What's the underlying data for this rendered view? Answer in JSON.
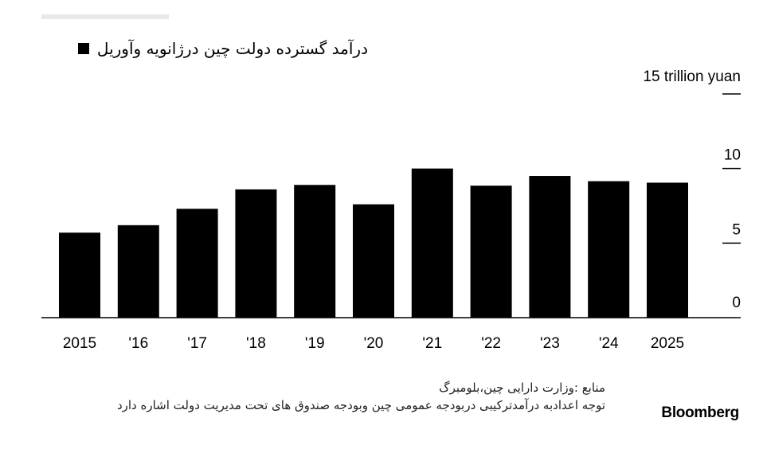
{
  "legend": {
    "label": "درآمد گسترده دولت چین درژانویه وآوریل",
    "swatch_color": "#000000"
  },
  "chart_data": {
    "type": "bar",
    "categories": [
      "2015",
      "'16",
      "'17",
      "'18",
      "'19",
      "'20",
      "'21",
      "'22",
      "'23",
      "'24",
      "2025"
    ],
    "values": [
      5.7,
      6.2,
      7.3,
      8.6,
      8.9,
      7.6,
      10.0,
      8.85,
      9.5,
      9.15,
      9.05
    ],
    "ylim": [
      0,
      15
    ],
    "yticks": [
      0,
      5,
      10,
      15
    ],
    "ytick_labels": [
      "0",
      "5",
      "10",
      "15 trillion yuan"
    ],
    "bar_color": "#000000",
    "grid": false
  },
  "footer": {
    "source": "منابع :وزارت دارایی چین،بلومبرگ",
    "note": "توجه اعدادبه درآمدترکیبی دربودجه عمومی چین وبودجه صندوق های تحت مدیریت دولت اشاره دارد",
    "brand": "Bloomberg"
  }
}
